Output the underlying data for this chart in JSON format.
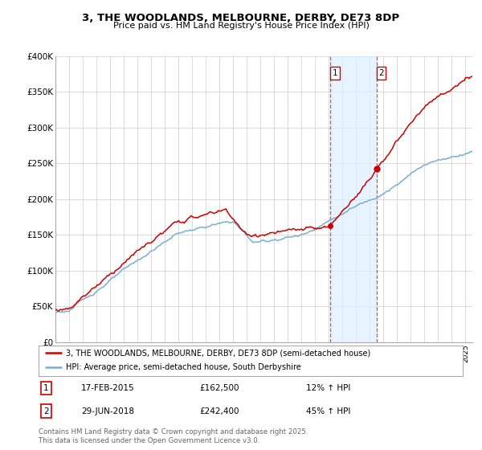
{
  "title": "3, THE WOODLANDS, MELBOURNE, DERBY, DE73 8DP",
  "subtitle": "Price paid vs. HM Land Registry's House Price Index (HPI)",
  "ylabel_ticks": [
    "£0",
    "£50K",
    "£100K",
    "£150K",
    "£200K",
    "£250K",
    "£300K",
    "£350K",
    "£400K"
  ],
  "ytick_values": [
    0,
    50000,
    100000,
    150000,
    200000,
    250000,
    300000,
    350000,
    400000
  ],
  "ylim": [
    0,
    400000
  ],
  "xlim_start": 1995.0,
  "xlim_end": 2025.5,
  "purchase1_x": 2015.12,
  "purchase1_y": 162500,
  "purchase1_label": "17-FEB-2015",
  "purchase1_price": "£162,500",
  "purchase1_hpi": "12% ↑ HPI",
  "purchase2_x": 2018.49,
  "purchase2_y": 242400,
  "purchase2_label": "29-JUN-2018",
  "purchase2_price": "£242,400",
  "purchase2_hpi": "45% ↑ HPI",
  "line1_color": "#cc0000",
  "line2_color": "#7aadd4",
  "shaded_color": "#ddeeff",
  "legend1_text": "3, THE WOODLANDS, MELBOURNE, DERBY, DE73 8DP (semi-detached house)",
  "legend2_text": "HPI: Average price, semi-detached house, South Derbyshire",
  "footer": "Contains HM Land Registry data © Crown copyright and database right 2025.\nThis data is licensed under the Open Government Licence v3.0.",
  "bg_color": "#ffffff",
  "grid_color": "#cccccc"
}
